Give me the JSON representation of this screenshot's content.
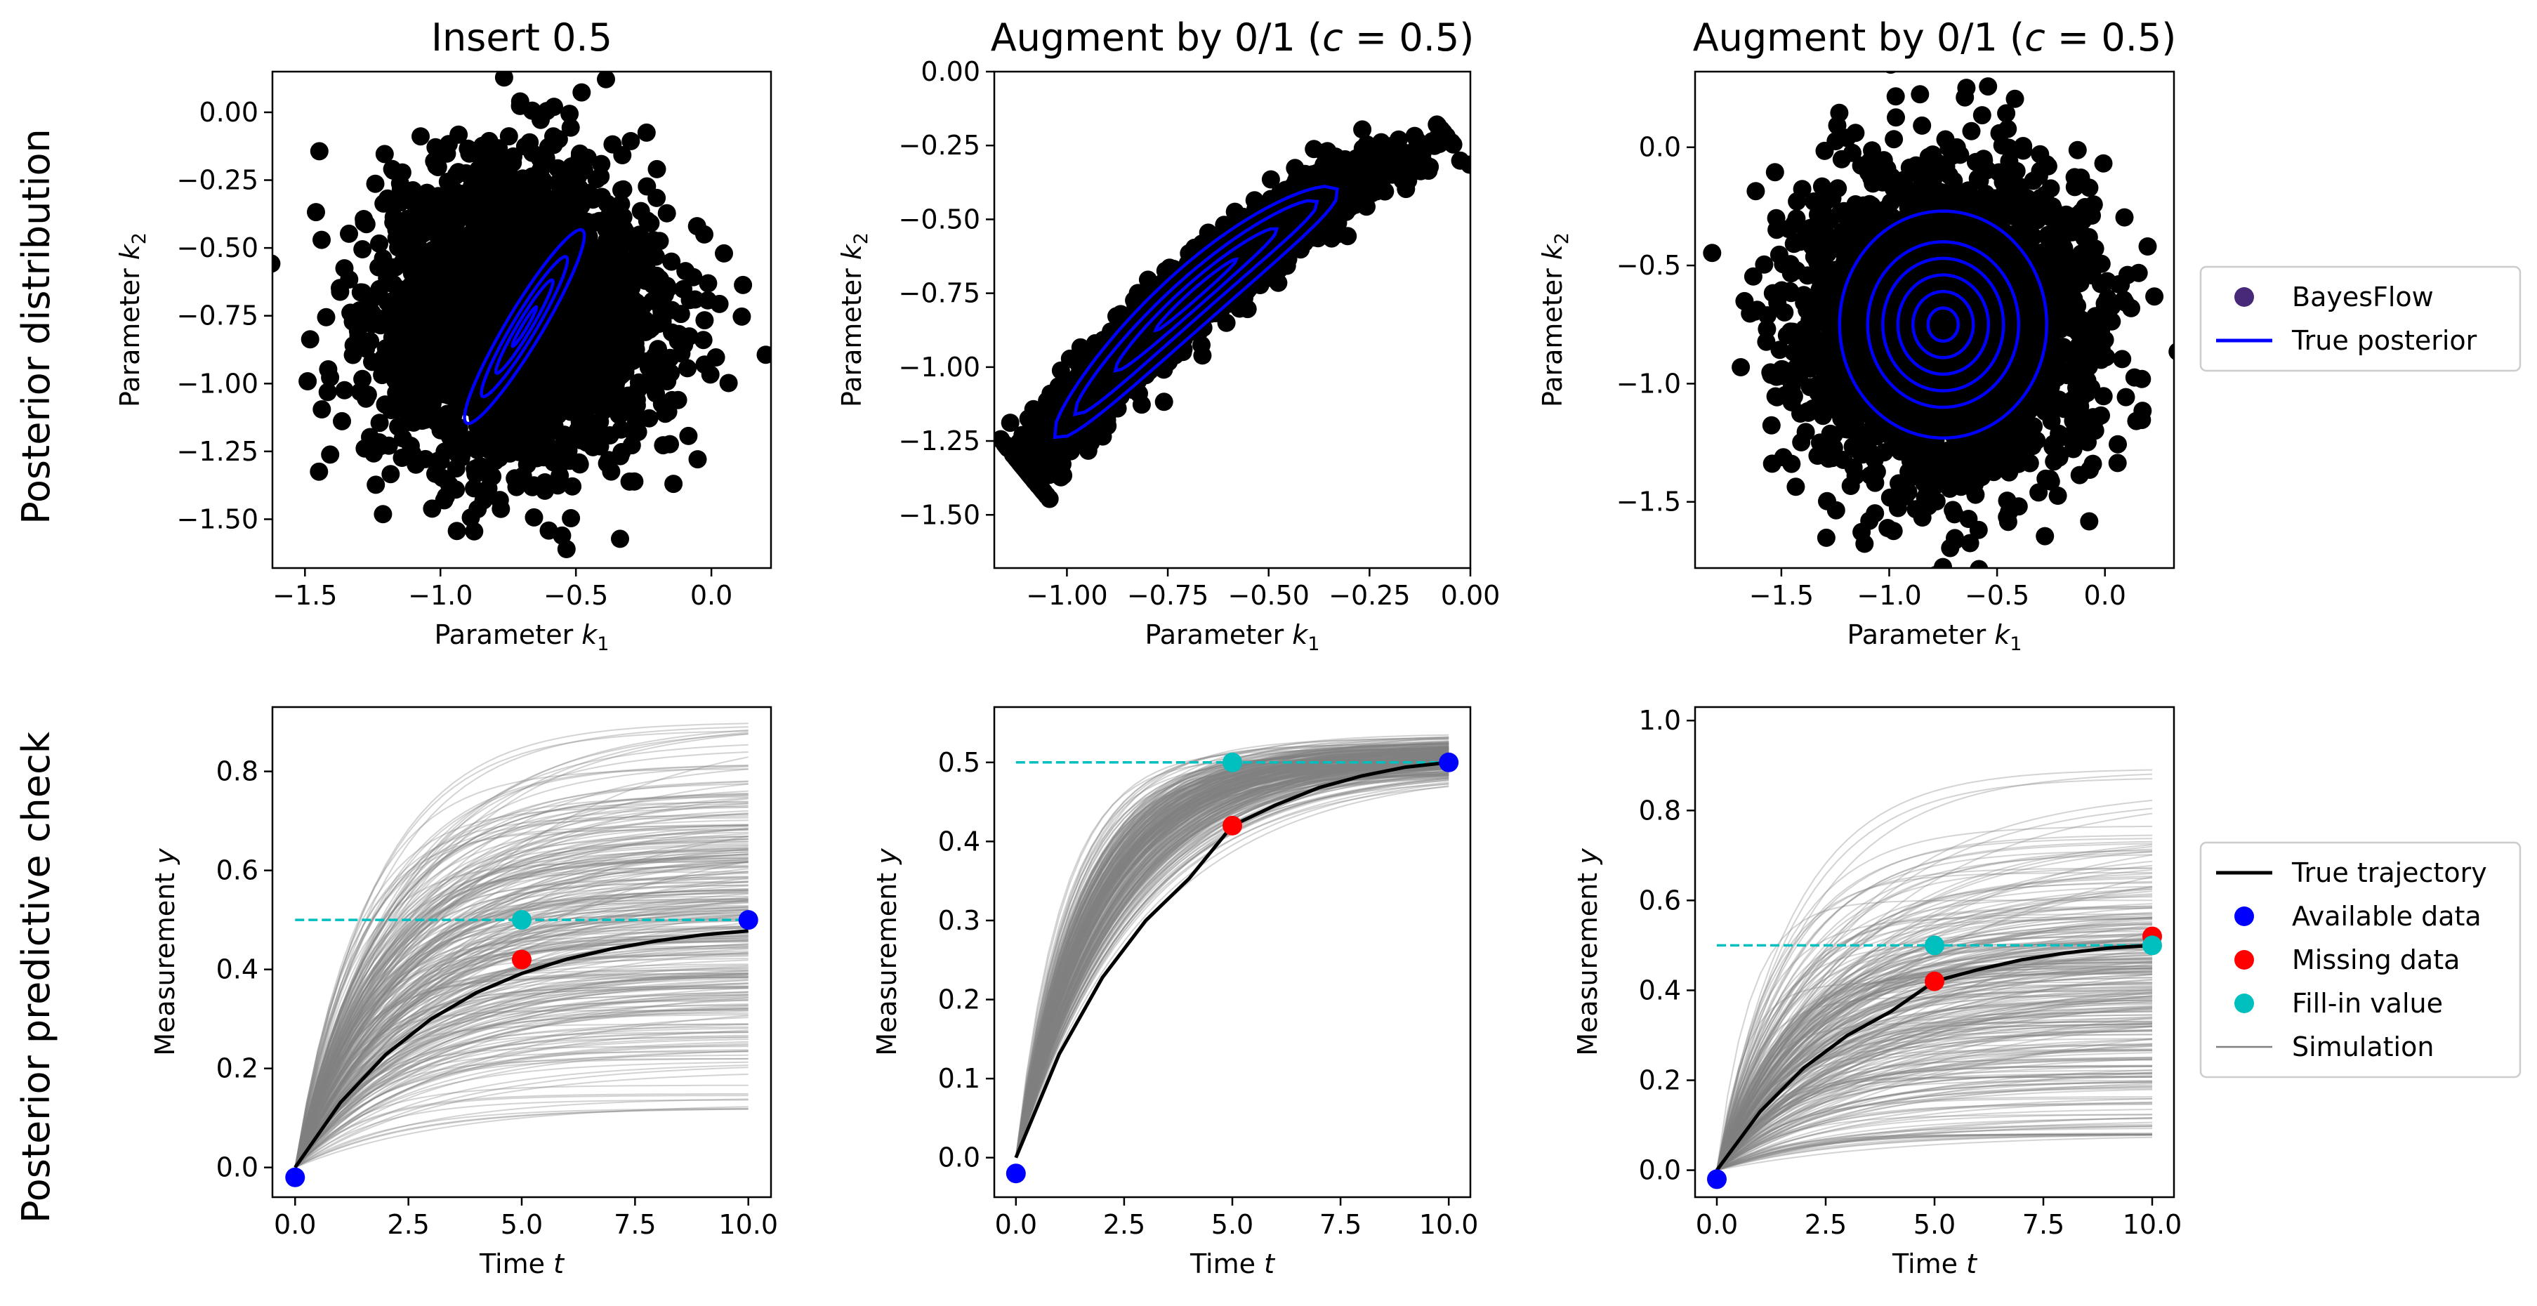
{
  "row_labels": [
    "Posterior distribution",
    "Posterior predictive check"
  ],
  "legend_top": {
    "items": [
      {
        "label": "BayesFlow",
        "kind": "dot",
        "color": "#482878"
      },
      {
        "label": "True posterior",
        "kind": "line",
        "color": "#0000ff"
      }
    ]
  },
  "legend_bottom": {
    "items": [
      {
        "label": "True trajectory",
        "kind": "line",
        "color": "#000000"
      },
      {
        "label": "Available data",
        "kind": "dot",
        "color": "#0000ff"
      },
      {
        "label": "Missing data",
        "kind": "dot",
        "color": "#ff0000"
      },
      {
        "label": "Fill-in value",
        "kind": "dot",
        "color": "#00bfbf"
      },
      {
        "label": "Simulation",
        "kind": "line",
        "color": "#808080"
      }
    ]
  },
  "chart_data": [
    {
      "type": "scatter",
      "title_main": "Insert 0.5",
      "title_c": "",
      "xlabel": "Parameter k",
      "xlabel_sub": "1",
      "ylabel": "Parameter k",
      "ylabel_sub": "2",
      "xlim": [
        -1.62,
        0.22
      ],
      "ylim": [
        -1.68,
        0.15
      ],
      "xticks": [
        -1.5,
        -1.0,
        -0.5,
        0.0
      ],
      "xtick_labels": [
        "−1.5",
        "−1.0",
        "−0.5",
        "0.0"
      ],
      "yticks": [
        -1.5,
        -1.25,
        -1.0,
        -0.75,
        -0.5,
        -0.25,
        0.0
      ],
      "ytick_labels": [
        "−1.50",
        "−1.25",
        "−1.00",
        "−0.75",
        "−0.50",
        "−0.25",
        "0.00"
      ],
      "samples": {
        "center": [
          -0.72,
          -0.74
        ],
        "sd": [
          0.26,
          0.26
        ],
        "rho": 0.0,
        "n": 2600
      },
      "contours": {
        "center": [
          -0.69,
          -0.79
        ],
        "angle_deg": 59,
        "major": [
          0.085,
          0.2,
          0.3,
          0.415
        ],
        "ratio": 0.11
      }
    },
    {
      "type": "scatter",
      "title_main": "Augment by 0/1 (",
      "title_c": "c = 0.5",
      "xlabel": "Parameter k",
      "xlabel_sub": "1",
      "ylabel": "Parameter k",
      "ylabel_sub": "2",
      "xlim": [
        -1.18,
        0.0
      ],
      "ylim": [
        -1.68,
        0.0
      ],
      "xticks": [
        -1.0,
        -0.75,
        -0.5,
        -0.25,
        0.0
      ],
      "xtick_labels": [
        "−1.00",
        "−0.75",
        "−0.50",
        "−0.25",
        "0.00"
      ],
      "yticks": [
        -1.5,
        -1.25,
        -1.0,
        -0.75,
        -0.5,
        -0.25,
        0.0
      ],
      "ytick_labels": [
        "−1.50",
        "−1.25",
        "−1.00",
        "−0.75",
        "−0.50",
        "−0.25",
        "0.00"
      ],
      "curve_samples": {
        "t_range": [
          -1.1,
          -0.06
        ],
        "curv": -0.55,
        "mid": -0.68,
        "center_y": -0.75,
        "slope": 1.2,
        "width": 0.04,
        "n": 2200
      },
      "contours": {
        "center": [
          -0.68,
          -0.75
        ],
        "half_len": [
          0.1,
          0.2,
          0.3,
          0.35
        ],
        "width": [
          0.012,
          0.03,
          0.05,
          0.075
        ],
        "slope": 1.2,
        "curv": -0.55
      }
    },
    {
      "type": "scatter",
      "title_main": "Augment by 0/1 (",
      "title_c": "c = 0.5",
      "xlabel": "Parameter k",
      "xlabel_sub": "1",
      "ylabel": "Parameter k",
      "ylabel_sub": "2",
      "xlim": [
        -1.9,
        0.32
      ],
      "ylim": [
        -1.78,
        0.32
      ],
      "xticks": [
        -1.5,
        -1.0,
        -0.5,
        0.0
      ],
      "xtick_labels": [
        "−1.5",
        "−1.0",
        "−0.5",
        "0.0"
      ],
      "yticks": [
        -1.5,
        -1.0,
        -0.5,
        0.0
      ],
      "ytick_labels": [
        "−1.5",
        "−1.0",
        "−0.5",
        "0.0"
      ],
      "samples": {
        "center": [
          -0.75,
          -0.75
        ],
        "sd": [
          0.33,
          0.33
        ],
        "rho": 0.0,
        "n": 2600
      },
      "contours": {
        "center": [
          -0.75,
          -0.75
        ],
        "radii": [
          0.07,
          0.14,
          0.21,
          0.28,
          0.35,
          0.48
        ]
      }
    },
    {
      "type": "line",
      "xlabel": "Time t",
      "ylabel": "Measurement y",
      "xlim": [
        -0.5,
        10.5
      ],
      "ylim": [
        -0.06,
        0.93
      ],
      "xticks": [
        0,
        2.5,
        5,
        7.5,
        10
      ],
      "xtick_labels": [
        "0.0",
        "2.5",
        "5.0",
        "7.5",
        "10.0"
      ],
      "yticks": [
        0,
        0.2,
        0.4,
        0.6,
        0.8
      ],
      "ytick_labels": [
        "0.0",
        "0.2",
        "0.4",
        "0.6",
        "0.8"
      ],
      "simulation": {
        "n": 300,
        "k_mean": -0.72,
        "k_sd": 0.26,
        "ymax_mean": 0.5,
        "ymax_sd": 0.18,
        "ymax_min": 0.12,
        "ymax_max": 0.9
      },
      "true_trajectory": {
        "x": [
          0,
          1,
          2,
          3,
          4,
          5,
          6,
          7,
          8,
          9,
          10
        ],
        "y": [
          0.0,
          0.131,
          0.228,
          0.3,
          0.353,
          0.392,
          0.421,
          0.442,
          0.458,
          0.47,
          0.478
        ]
      },
      "available_data": [
        [
          0,
          -0.02
        ],
        [
          10,
          0.5
        ]
      ],
      "missing_data": [
        [
          5,
          0.42
        ]
      ],
      "fill_in": [
        [
          5,
          0.5
        ]
      ],
      "fill_line_y": 0.5
    },
    {
      "type": "line",
      "xlabel": "Time t",
      "ylabel": "Measurement y",
      "xlim": [
        -0.5,
        10.5
      ],
      "ylim": [
        -0.05,
        0.57
      ],
      "xticks": [
        0,
        2.5,
        5,
        7.5,
        10
      ],
      "xtick_labels": [
        "0.0",
        "2.5",
        "5.0",
        "7.5",
        "10.0"
      ],
      "yticks": [
        0,
        0.1,
        0.2,
        0.3,
        0.4,
        0.5
      ],
      "ytick_labels": [
        "0.0",
        "0.1",
        "0.2",
        "0.3",
        "0.4",
        "0.5"
      ],
      "simulation": {
        "n": 300,
        "k_mean": -0.7,
        "k_sd": 0.2,
        "ymax_mean": 0.51,
        "ymax_sd": 0.012,
        "ymax_min": 0.48,
        "ymax_max": 0.54
      },
      "true_trajectory": {
        "x": [
          0,
          1,
          2,
          3,
          4,
          5,
          6,
          7,
          8,
          9,
          10
        ],
        "y": [
          0.0,
          0.131,
          0.228,
          0.3,
          0.353,
          0.42,
          0.446,
          0.468,
          0.483,
          0.494,
          0.5
        ]
      },
      "available_data": [
        [
          0,
          -0.02
        ],
        [
          10,
          0.5
        ]
      ],
      "missing_data": [
        [
          5,
          0.42
        ]
      ],
      "fill_in": [
        [
          5,
          0.5
        ]
      ],
      "fill_line_y": 0.5
    },
    {
      "type": "line",
      "xlabel": "Time t",
      "ylabel": "Measurement y",
      "xlim": [
        -0.5,
        10.5
      ],
      "ylim": [
        -0.06,
        1.03
      ],
      "xticks": [
        0,
        2.5,
        5,
        7.5,
        10
      ],
      "xtick_labels": [
        "0.0",
        "2.5",
        "5.0",
        "7.5",
        "10.0"
      ],
      "yticks": [
        0,
        0.2,
        0.4,
        0.6,
        0.8,
        1.0
      ],
      "ytick_labels": [
        "0.0",
        "0.2",
        "0.4",
        "0.6",
        "0.8",
        "1.0"
      ],
      "simulation": {
        "n": 300,
        "k_mean": -0.75,
        "k_sd": 0.33,
        "ymax_mean": 0.42,
        "ymax_sd": 0.17,
        "ymax_min": 0.08,
        "ymax_max": 0.98
      },
      "true_trajectory": {
        "x": [
          0,
          1,
          2,
          3,
          4,
          5,
          6,
          7,
          8,
          9,
          10
        ],
        "y": [
          0.0,
          0.131,
          0.228,
          0.3,
          0.353,
          0.42,
          0.446,
          0.468,
          0.483,
          0.494,
          0.5
        ]
      },
      "available_data": [
        [
          0,
          -0.02
        ]
      ],
      "missing_data": [
        [
          5,
          0.42
        ],
        [
          10,
          0.52
        ]
      ],
      "fill_in": [
        [
          5,
          0.5
        ],
        [
          10,
          0.5
        ]
      ],
      "fill_line_y": 0.5
    }
  ]
}
